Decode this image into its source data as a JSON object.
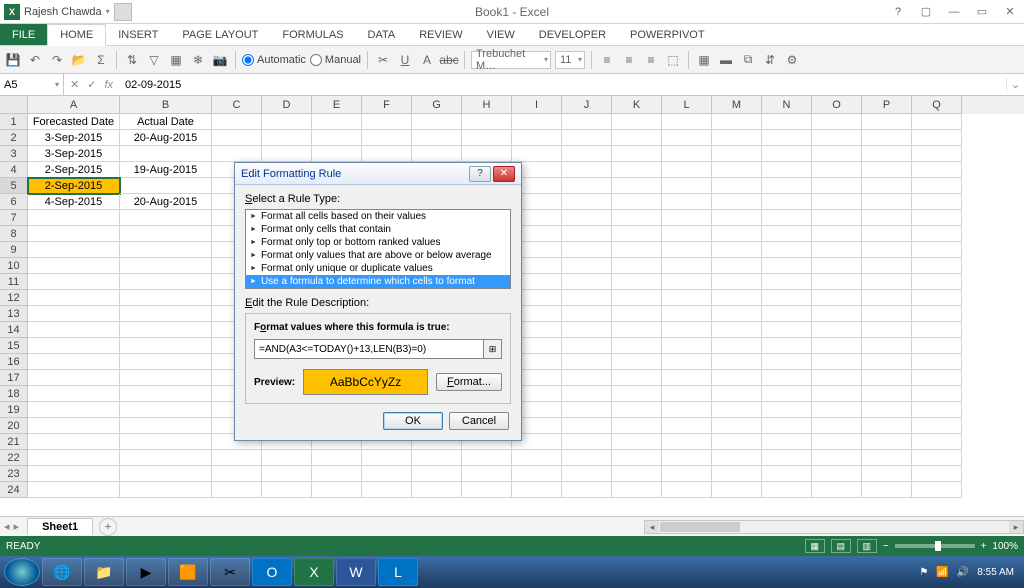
{
  "app": {
    "title": "Book1 - Excel",
    "user": "Rajesh Chawda"
  },
  "ribbon": {
    "tabs": [
      "FILE",
      "HOME",
      "INSERT",
      "PAGE LAYOUT",
      "FORMULAS",
      "DATA",
      "REVIEW",
      "VIEW",
      "DEVELOPER",
      "POWERPIVOT"
    ],
    "active": "HOME"
  },
  "toolbar": {
    "automatic": "Automatic",
    "manual": "Manual",
    "font_name": "Trebuchet M…",
    "font_size": "11"
  },
  "formulabar": {
    "namebox": "A5",
    "formula": "02-09-2015"
  },
  "grid": {
    "col_widths": {
      "row_hdr": 28,
      "A": 92,
      "B": 92,
      "other": 50
    },
    "columns": [
      "A",
      "B",
      "C",
      "D",
      "E",
      "F",
      "G",
      "H",
      "I",
      "J",
      "K",
      "L",
      "M",
      "N",
      "O",
      "P",
      "Q"
    ],
    "row_count": 24,
    "rows": [
      {
        "n": 1,
        "A": "Forecasted Date",
        "B": "Actual Date"
      },
      {
        "n": 2,
        "A": "3-Sep-2015",
        "B": "20-Aug-2015"
      },
      {
        "n": 3,
        "A": "3-Sep-2015",
        "B": ""
      },
      {
        "n": 4,
        "A": "2-Sep-2015",
        "B": "19-Aug-2015"
      },
      {
        "n": 5,
        "A": "2-Sep-2015",
        "B": "",
        "A_highlight": true
      },
      {
        "n": 6,
        "A": "4-Sep-2015",
        "B": "20-Aug-2015"
      }
    ],
    "selected": {
      "row": 5,
      "col": "A"
    }
  },
  "sheets": {
    "active": "Sheet1"
  },
  "statusbar": {
    "status": "READY",
    "zoom": "100%"
  },
  "dialog": {
    "title": "Edit Formatting Rule",
    "select_label": "Select a Rule Type:",
    "rule_types": [
      "Format all cells based on their values",
      "Format only cells that contain",
      "Format only top or bottom ranked values",
      "Format only values that are above or below average",
      "Format only unique or duplicate values",
      "Use a formula to determine which cells to format"
    ],
    "selected_rule_index": 5,
    "edit_label": "Edit the Rule Description:",
    "formula_label": "Format values where this formula is true:",
    "formula": "=AND(A3<=TODAY()+13,LEN(B3)=0)",
    "preview_label": "Preview:",
    "preview_text": "AaBbCcYyZz",
    "preview_bg": "#ffc000",
    "format_btn": "Format...",
    "ok": "OK",
    "cancel": "Cancel"
  },
  "taskbar": {
    "time": "8:55 AM",
    "date": ""
  }
}
